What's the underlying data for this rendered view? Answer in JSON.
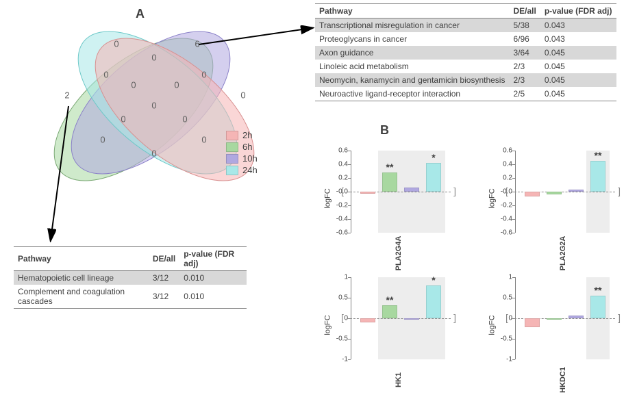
{
  "panelA_label": "A",
  "panelB_label": "B",
  "colors": {
    "t2h": "#f5b5b5",
    "t6h": "#a8d8a0",
    "t10h": "#b0a8e0",
    "t24h": "#a8e8e8",
    "venn_stroke": "#888888"
  },
  "legend": [
    {
      "label": "2h",
      "color": "#f5b5b5"
    },
    {
      "label": "6h",
      "color": "#a8d8a0"
    },
    {
      "label": "10h",
      "color": "#b0a8e0"
    },
    {
      "label": "24h",
      "color": "#a8e8e8"
    }
  ],
  "venn_counts": {
    "green_only": 2,
    "purple_only": 0,
    "cyan_only": 6,
    "pink_only": 0,
    "gp": 0,
    "gc": 0,
    "pc": 0,
    "cp2": 0,
    "pp2": 0,
    "gp2": 0,
    "gpc": 0,
    "gcp2": 0,
    "pcp2": 0,
    "gpp2": 0,
    "all": 0
  },
  "table_top": {
    "headers": [
      "Pathway",
      "DE/all",
      "p-value (FDR adj)"
    ],
    "rows": [
      {
        "pathway": "Transcriptional misregulation in cancer",
        "de": "5/38",
        "p": "0.043",
        "shade": true
      },
      {
        "pathway": "Proteoglycans in cancer",
        "de": "6/96",
        "p": "0.043",
        "shade": false
      },
      {
        "pathway": "Axon guidance",
        "de": "3/64",
        "p": "0.045",
        "shade": true
      },
      {
        "pathway": "Linoleic acid metabolism",
        "de": "2/3",
        "p": "0.045",
        "shade": false
      },
      {
        "pathway": "Neomycin, kanamycin and gentamicin biosynthesis",
        "de": "2/3",
        "p": "0.045",
        "shade": true
      },
      {
        "pathway": "Neuroactive ligand-receptor interaction",
        "de": "2/5",
        "p": "0.045",
        "shade": false
      }
    ]
  },
  "table_bottom": {
    "headers": [
      "Pathway",
      "DE/all",
      "p-value (FDR adj)"
    ],
    "rows": [
      {
        "pathway": "Hematopoietic cell lineage",
        "de": "3/12",
        "p": "0.010",
        "shade": true
      },
      {
        "pathway": "Complement and coagulation cascades",
        "de": "3/12",
        "p": "0.010",
        "shade": false
      }
    ]
  },
  "charts": {
    "ylabel": "logFC",
    "items": [
      {
        "gene": "PLA2G4A",
        "ylim": [
          -0.6,
          0.6
        ],
        "ticks": [
          0.6,
          0.4,
          0.2,
          "-0.0",
          -0.2,
          -0.4,
          -0.6
        ],
        "highlight": [
          1,
          3
        ],
        "values": [
          -0.03,
          0.28,
          0.06,
          0.42
        ],
        "sig": [
          "",
          "**",
          "",
          "*"
        ]
      },
      {
        "gene": "PLA2G2A",
        "ylim": [
          -0.6,
          0.6
        ],
        "ticks": [
          0.6,
          0.4,
          0.2,
          "-0.0",
          -0.2,
          -0.4,
          -0.6
        ],
        "highlight": [
          3,
          3
        ],
        "values": [
          -0.07,
          -0.04,
          0.03,
          0.45
        ],
        "sig": [
          "",
          "",
          "",
          "**"
        ]
      },
      {
        "gene": "HK1",
        "ylim": [
          -1.0,
          1.0
        ],
        "ticks": [
          1.0,
          0.5,
          0.0,
          -0.5,
          -1.0
        ],
        "highlight": [
          1,
          3
        ],
        "values": [
          -0.1,
          0.32,
          -0.04,
          0.8
        ],
        "sig": [
          "",
          "**",
          "",
          "*"
        ]
      },
      {
        "gene": "HKDC1",
        "ylim": [
          -1.0,
          1.0
        ],
        "ticks": [
          1.0,
          0.5,
          0.0,
          -0.5,
          -1.0
        ],
        "highlight": [
          3,
          3
        ],
        "values": [
          -0.22,
          -0.02,
          0.06,
          0.55
        ],
        "sig": [
          "",
          "",
          "",
          "**"
        ]
      }
    ],
    "bar_colors": [
      "#f5b5b5",
      "#a8d8a0",
      "#b0a8e0",
      "#a8e8e8"
    ]
  }
}
